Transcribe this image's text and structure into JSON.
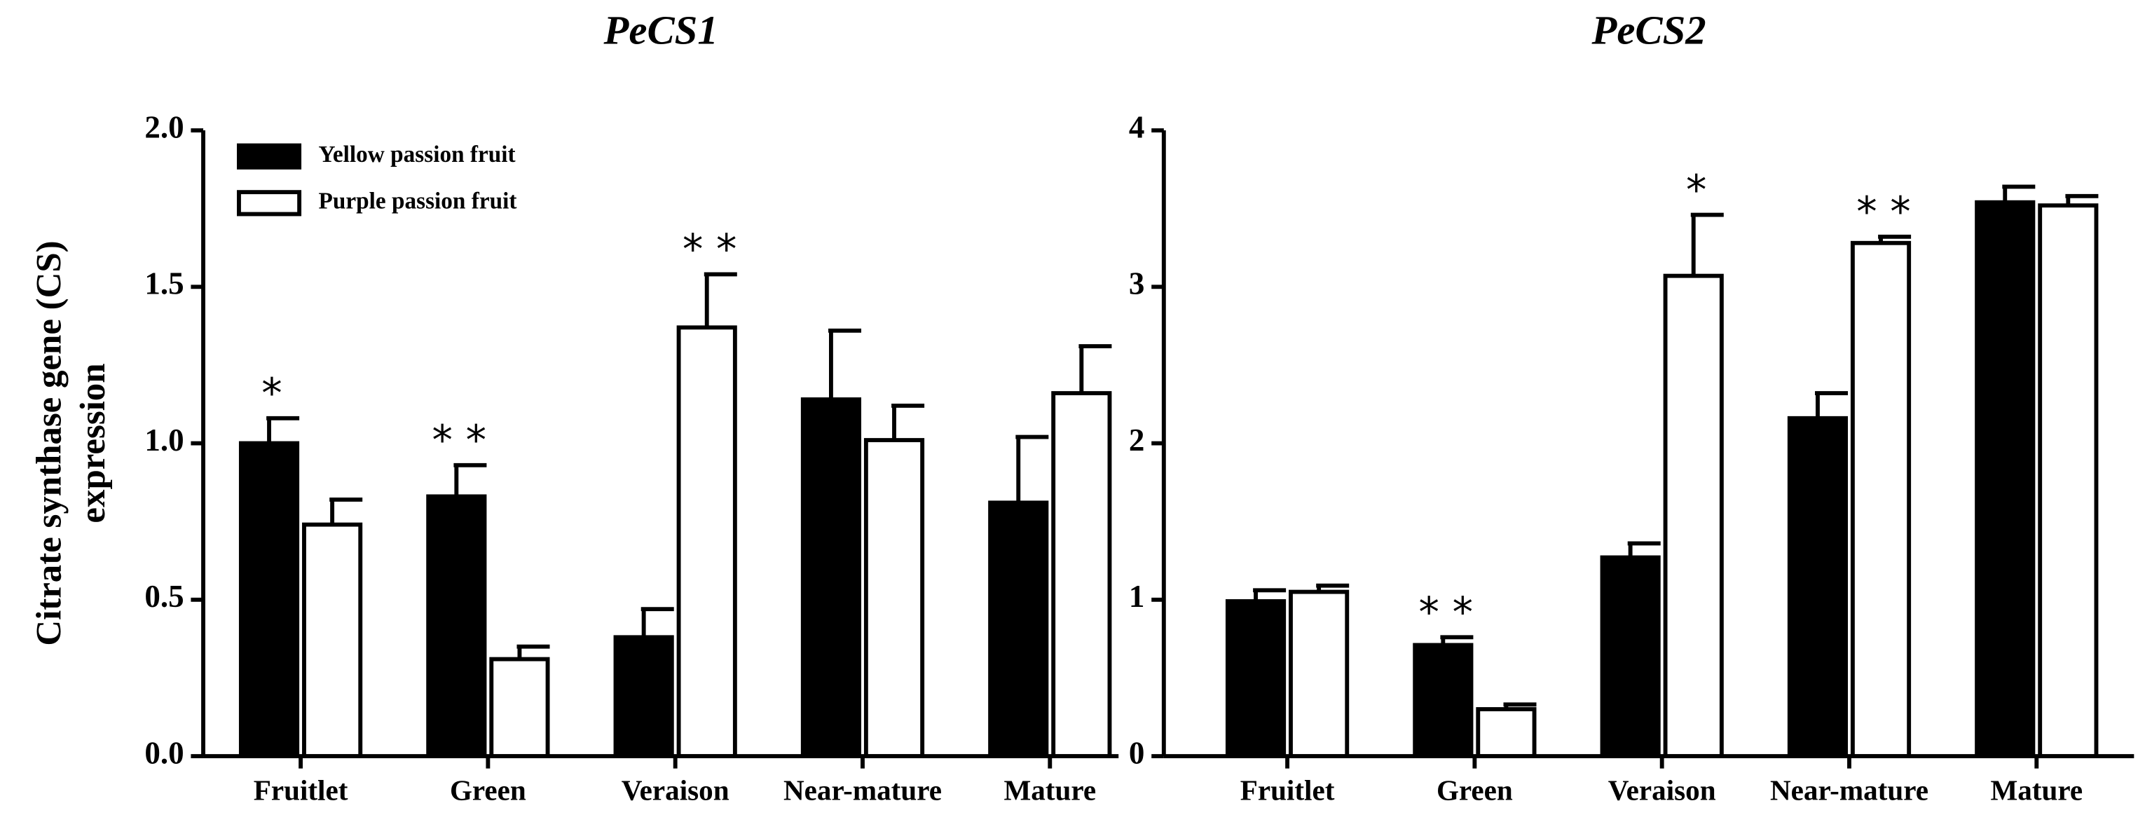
{
  "chart_data": [
    {
      "type": "bar",
      "title": "PeCS1",
      "ylabel": [
        "Citrate synthase gene (CS)",
        "expression"
      ],
      "categories": [
        "Fruitlet",
        "Green",
        "Veraison",
        "Near-mature",
        "Mature"
      ],
      "series": [
        {
          "name": "Yellow passion fruit",
          "color": "#000000",
          "values": [
            1.0,
            0.83,
            0.38,
            1.14,
            0.81
          ],
          "errors": [
            0.08,
            0.1,
            0.09,
            0.22,
            0.21
          ]
        },
        {
          "name": "Purple passion fruit",
          "color": "#ffffff",
          "values": [
            0.74,
            0.31,
            1.37,
            1.01,
            1.16
          ],
          "errors": [
            0.08,
            0.04,
            0.17,
            0.11,
            0.15
          ]
        }
      ],
      "ylim": [
        0,
        2
      ],
      "yticks": [
        {
          "value": 0,
          "label": "0.0"
        },
        0.5,
        {
          "value": 1,
          "label": "1.0"
        },
        1.5,
        {
          "value": 2,
          "label": "2.0"
        }
      ],
      "legend": "upper left",
      "annotations": [
        {
          "text": "*",
          "category": 0,
          "series": 0
        },
        {
          "text": "* *",
          "category": 1,
          "series": 0
        },
        {
          "text": "* *",
          "category": 2,
          "series": 1
        }
      ]
    },
    {
      "type": "bar",
      "title": "PeCS2",
      "categories": [
        "Fruitlet",
        "Green",
        "Veraison",
        "Near-mature",
        "Mature"
      ],
      "series": [
        {
          "color": "#000000",
          "values": [
            0.99,
            0.71,
            1.27,
            2.16,
            3.54
          ],
          "errors": [
            0.07,
            0.05,
            0.09,
            0.16,
            0.1
          ]
        },
        {
          "color": "#ffffff",
          "values": [
            1.05,
            0.3,
            3.07,
            3.28,
            3.52
          ],
          "errors": [
            0.04,
            0.03,
            0.39,
            0.04,
            0.06
          ]
        }
      ],
      "ylim": [
        0,
        4
      ],
      "yticks": [
        0,
        1,
        2,
        3,
        4
      ],
      "annotations": [
        {
          "text": "* *",
          "category": 1,
          "series": 0
        },
        {
          "text": "*",
          "category": 2,
          "series": 1
        },
        {
          "text": "* *",
          "category": 3,
          "series": 1
        }
      ]
    }
  ]
}
